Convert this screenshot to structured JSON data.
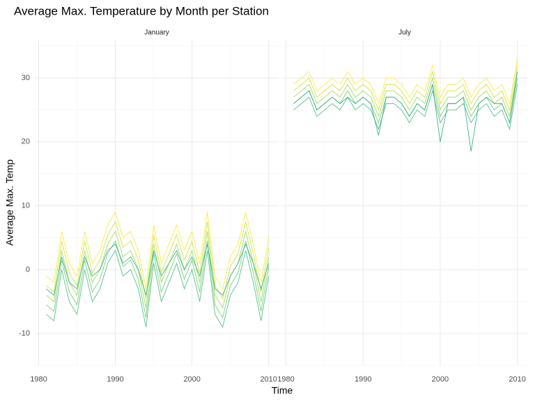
{
  "title": "Average Max. Temperature by Month per Station",
  "x_label": "Time",
  "y_label": "Average Max. Temp",
  "chart_data": [
    {
      "type": "line",
      "facet": "January",
      "x": [
        1981,
        1982,
        1983,
        1984,
        1985,
        1986,
        1987,
        1988,
        1989,
        1990,
        1991,
        1992,
        1993,
        1994,
        1995,
        1996,
        1997,
        1998,
        1999,
        2000,
        2001,
        2002,
        2003,
        2004,
        2005,
        2006,
        2007,
        2008,
        2009,
        2010
      ],
      "xlim": [
        1979.5,
        2011.3
      ],
      "xticks": [
        1980,
        1990,
        2000,
        2010
      ],
      "xminor": [
        1985,
        1995,
        2005
      ],
      "ylim": [
        -15,
        36
      ],
      "yticks": [
        -10,
        0,
        10,
        20,
        30
      ],
      "yminor": [
        -15,
        -5,
        5,
        15,
        25,
        35
      ],
      "show_ytick_labels": true,
      "grid": true,
      "series": [
        {
          "color": "#35b779",
          "values": [
            -7,
            -8,
            0,
            -5,
            -7,
            0,
            -5,
            -3,
            1,
            3,
            -1,
            0,
            -3,
            -9,
            1,
            -5,
            -2,
            1,
            -3,
            0,
            -5,
            3,
            -7,
            -9,
            -4,
            -2,
            3,
            -2,
            -8,
            -1
          ]
        },
        {
          "color": "#5ec962",
          "values": [
            -5.5,
            -6.5,
            1.5,
            -3.5,
            -5.5,
            1.5,
            -3.5,
            -1.5,
            2.5,
            4.5,
            0.5,
            1.5,
            -1.5,
            -7.5,
            2.5,
            -3.5,
            -0.5,
            2.5,
            -1.5,
            1.5,
            -3.5,
            4.5,
            -5.5,
            -7.5,
            -2.5,
            -0.5,
            4.5,
            -0.5,
            -6.5,
            0.5
          ]
        },
        {
          "color": "#90d743",
          "values": [
            -4,
            -5,
            3,
            -2,
            -4,
            3,
            -2,
            0,
            4,
            6,
            2,
            3,
            0,
            -6,
            4,
            -2,
            1,
            4,
            0,
            3,
            -2,
            6,
            -4,
            -6,
            -1,
            1,
            6,
            1,
            -5,
            2
          ]
        },
        {
          "color": "#c8e020",
          "values": [
            -2.5,
            -3.5,
            4.5,
            -0.5,
            -2.5,
            4.5,
            -0.5,
            1.5,
            5.5,
            7.5,
            3.5,
            4.5,
            1.5,
            -4.5,
            5.5,
            -0.5,
            2.5,
            5.5,
            1.5,
            4.5,
            -0.5,
            7.5,
            -2.5,
            -4.5,
            0.5,
            2.5,
            7.5,
            2.5,
            -3.5,
            3.5
          ]
        },
        {
          "color": "#fde725",
          "values": [
            -1,
            -2,
            6,
            1,
            -1,
            6,
            1,
            3,
            7,
            9,
            5,
            6,
            3,
            -3,
            7,
            1,
            4,
            7,
            3,
            6,
            1,
            9,
            -1,
            -3,
            2,
            4,
            9,
            4,
            -2,
            5
          ]
        },
        {
          "color": "#21a585",
          "values": [
            -3,
            -4,
            2,
            -2,
            -3,
            2,
            -1,
            0,
            3,
            4,
            1,
            2,
            0,
            -4,
            3,
            -1,
            1,
            3,
            0,
            2,
            -1,
            4,
            -3,
            -4,
            -1,
            1,
            4,
            1,
            -3,
            1
          ]
        }
      ]
    },
    {
      "type": "line",
      "facet": "July",
      "x": [
        1981,
        1982,
        1983,
        1984,
        1985,
        1986,
        1987,
        1988,
        1989,
        1990,
        1991,
        1992,
        1993,
        1994,
        1995,
        1996,
        1997,
        1998,
        1999,
        2000,
        2001,
        2002,
        2003,
        2004,
        2005,
        2006,
        2007,
        2008,
        2009,
        2010
      ],
      "xlim": [
        1979.5,
        2011.3
      ],
      "xticks": [
        1980,
        1990,
        2000,
        2010
      ],
      "xminor": [
        1985,
        1995,
        2005
      ],
      "ylim": [
        -15,
        36
      ],
      "yticks": [
        -10,
        0,
        10,
        20,
        30
      ],
      "yminor": [
        -15,
        -5,
        5,
        15,
        25,
        35
      ],
      "show_ytick_labels": false,
      "grid": true,
      "series": [
        {
          "color": "#35b779",
          "values": [
            25,
            26,
            27,
            24,
            25,
            26,
            25,
            27,
            25,
            26,
            25,
            22,
            26,
            26,
            25,
            23,
            25,
            24,
            28,
            23,
            25,
            25,
            26,
            23,
            25,
            26,
            24,
            25,
            22,
            29
          ]
        },
        {
          "color": "#5ec962",
          "values": [
            26,
            27,
            28,
            25,
            26,
            27,
            26,
            28,
            26,
            27,
            26,
            23,
            27,
            27,
            26,
            24,
            26,
            25,
            29,
            24,
            26,
            26,
            27,
            24,
            26,
            27,
            25,
            26,
            23,
            30
          ]
        },
        {
          "color": "#90d743",
          "values": [
            27,
            28,
            29,
            26,
            27,
            28,
            27,
            29,
            27,
            28,
            27,
            24,
            28,
            28,
            27,
            25,
            27,
            26,
            30,
            25,
            27,
            27,
            28,
            25,
            27,
            28,
            26,
            27,
            24,
            31
          ]
        },
        {
          "color": "#c8e020",
          "values": [
            28,
            29,
            30,
            27,
            28,
            29,
            28,
            30,
            28,
            29,
            28,
            25,
            29,
            29,
            28,
            26,
            28,
            27,
            31,
            26,
            28,
            28,
            29,
            26,
            28,
            29,
            27,
            28,
            25,
            32
          ]
        },
        {
          "color": "#fde725",
          "values": [
            29,
            30,
            31,
            28,
            29,
            30,
            29,
            31,
            29,
            30,
            29,
            26,
            30,
            30,
            29,
            27,
            29,
            28,
            32,
            27,
            29,
            29,
            30,
            27,
            29,
            30,
            28,
            29,
            26,
            33
          ]
        },
        {
          "color": "#21a585",
          "values": [
            26,
            27,
            28,
            25,
            26,
            27,
            26,
            27,
            26,
            27,
            26,
            21,
            27,
            27,
            26,
            24,
            26,
            25,
            29,
            20,
            26,
            26,
            27,
            18.5,
            26,
            27,
            26,
            26,
            23,
            31
          ]
        }
      ]
    }
  ]
}
